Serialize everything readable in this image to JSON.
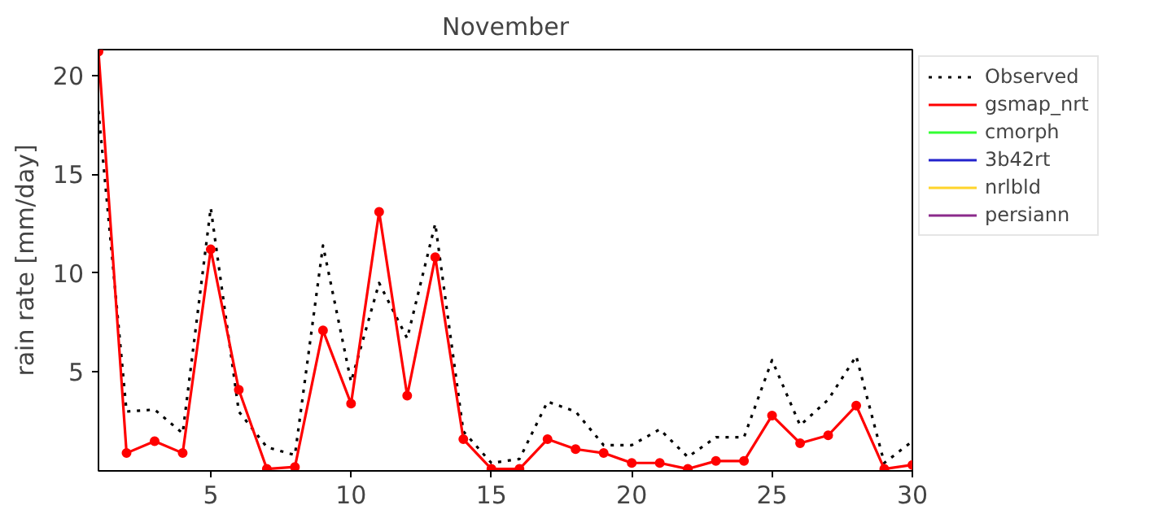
{
  "chart_data": {
    "type": "line",
    "title": "November",
    "ylabel": "rain rate [mm/day]",
    "x": [
      1,
      2,
      3,
      4,
      5,
      6,
      7,
      8,
      9,
      10,
      11,
      12,
      13,
      14,
      15,
      16,
      17,
      18,
      19,
      20,
      21,
      22,
      23,
      24,
      25,
      26,
      27,
      28,
      29,
      30
    ],
    "xlim": [
      1,
      30
    ],
    "xticks": [
      5,
      10,
      15,
      20,
      25,
      30
    ],
    "ylim": [
      0,
      21.3
    ],
    "yticks": [
      5,
      10,
      15,
      20
    ],
    "grid": false,
    "legend": "right",
    "series": [
      {
        "name": "Observed",
        "color": "#000000",
        "line_style": "dotted",
        "marker": "none",
        "values": [
          18.2,
          3.0,
          3.1,
          1.9,
          13.3,
          3.0,
          1.2,
          0.8,
          11.4,
          4.5,
          9.5,
          6.7,
          12.5,
          2.0,
          0.4,
          0.6,
          3.5,
          3.0,
          1.3,
          1.3,
          2.1,
          0.7,
          1.7,
          1.7,
          5.6,
          2.3,
          3.6,
          5.8,
          0.4,
          1.5
        ]
      },
      {
        "name": "gsmap_nrt",
        "color": "#ff0000",
        "line_style": "solid",
        "marker": "circle",
        "values": [
          21.2,
          0.9,
          1.5,
          0.9,
          11.2,
          4.1,
          0.1,
          0.2,
          7.1,
          3.4,
          13.1,
          3.8,
          10.8,
          1.6,
          0.1,
          0.1,
          1.6,
          1.1,
          0.9,
          0.4,
          0.4,
          0.1,
          0.5,
          0.5,
          2.8,
          1.4,
          1.8,
          3.3,
          0.1,
          0.3
        ]
      },
      {
        "name": "cmorph",
        "color": "#33ff33",
        "line_style": "solid",
        "marker": "none",
        "values": [
          null,
          null,
          null,
          null,
          null,
          null,
          null,
          null,
          null,
          null,
          null,
          null,
          null,
          null,
          null,
          null,
          null,
          null,
          null,
          null,
          null,
          null,
          null,
          null,
          null,
          null,
          null,
          null,
          null,
          null
        ]
      },
      {
        "name": "3b42rt",
        "color": "#2222cc",
        "line_style": "solid",
        "marker": "none",
        "values": [
          null,
          null,
          null,
          null,
          null,
          null,
          null,
          null,
          null,
          null,
          null,
          null,
          null,
          null,
          null,
          null,
          null,
          null,
          null,
          null,
          null,
          null,
          null,
          null,
          null,
          null,
          null,
          null,
          null,
          null
        ]
      },
      {
        "name": "nrlbld",
        "color": "#ffd42a",
        "line_style": "solid",
        "marker": "none",
        "values": [
          null,
          null,
          null,
          null,
          null,
          null,
          null,
          null,
          null,
          null,
          null,
          null,
          null,
          null,
          null,
          null,
          null,
          null,
          null,
          null,
          null,
          null,
          null,
          null,
          null,
          null,
          null,
          null,
          null,
          null
        ]
      },
      {
        "name": "persiann",
        "color": "#8b2a8b",
        "line_style": "solid",
        "marker": "none",
        "values": [
          null,
          null,
          null,
          null,
          null,
          null,
          null,
          null,
          null,
          null,
          null,
          null,
          null,
          null,
          null,
          null,
          null,
          null,
          null,
          null,
          null,
          null,
          null,
          null,
          null,
          null,
          null,
          null,
          null,
          null
        ]
      }
    ]
  }
}
